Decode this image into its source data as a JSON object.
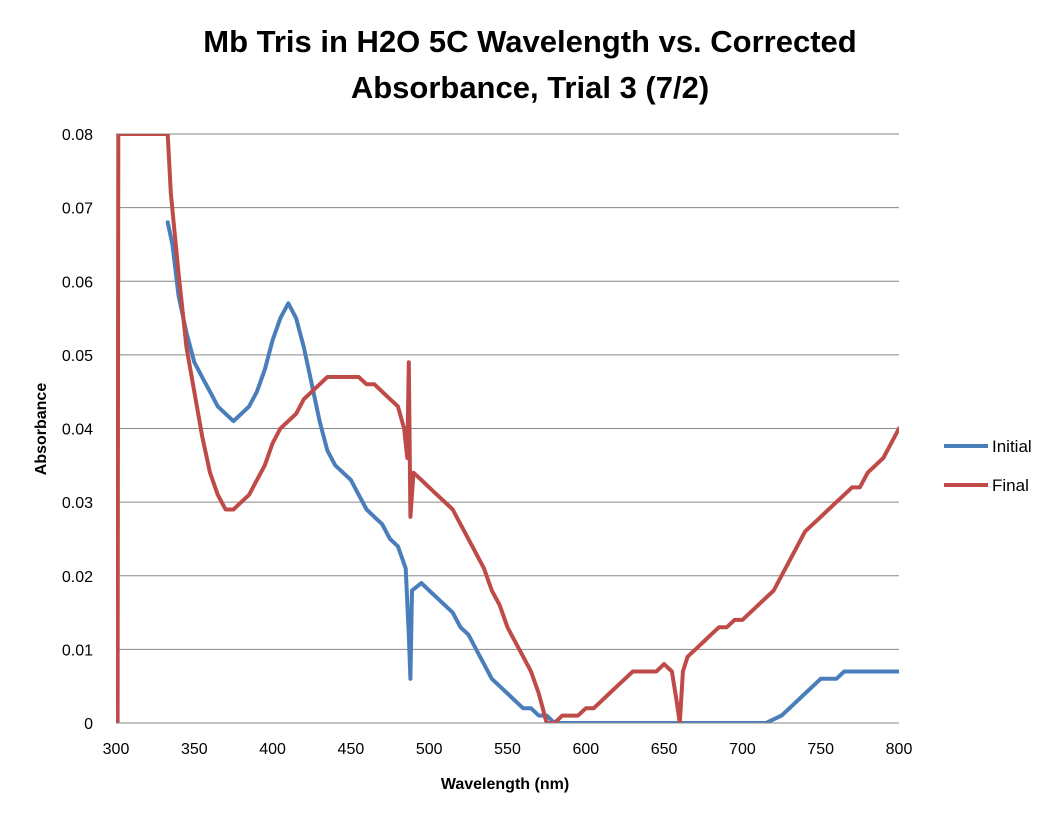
{
  "chart_data": {
    "type": "line",
    "title_lines": [
      "Mb Tris in H2O 5C Wavelength vs. Corrected",
      "Absorbance, Trial 3 (7/2)"
    ],
    "xlabel": "Wavelength (nm)",
    "ylabel": "Absorbance",
    "xlim": [
      300,
      800
    ],
    "ylim": [
      0,
      0.08
    ],
    "x_ticks": [
      "300",
      "350",
      "400",
      "450",
      "500",
      "550",
      "600",
      "650",
      "700",
      "750",
      "800"
    ],
    "y_ticks": [
      "0",
      "0.01",
      "0.02",
      "0.03",
      "0.04",
      "0.05",
      "0.06",
      "0.07",
      "0.08"
    ],
    "grid": "horizontal",
    "legend_position": "right",
    "series": [
      {
        "name": "Initial",
        "color": "#4a7ebb",
        "points": [
          [
            333,
            0.068
          ],
          [
            336,
            0.065
          ],
          [
            340,
            0.058
          ],
          [
            345,
            0.053
          ],
          [
            350,
            0.049
          ],
          [
            355,
            0.047
          ],
          [
            360,
            0.045
          ],
          [
            365,
            0.043
          ],
          [
            370,
            0.042
          ],
          [
            375,
            0.041
          ],
          [
            380,
            0.042
          ],
          [
            385,
            0.043
          ],
          [
            390,
            0.045
          ],
          [
            395,
            0.048
          ],
          [
            400,
            0.052
          ],
          [
            405,
            0.055
          ],
          [
            410,
            0.057
          ],
          [
            415,
            0.055
          ],
          [
            420,
            0.051
          ],
          [
            425,
            0.046
          ],
          [
            430,
            0.041
          ],
          [
            435,
            0.037
          ],
          [
            440,
            0.035
          ],
          [
            445,
            0.034
          ],
          [
            450,
            0.033
          ],
          [
            455,
            0.031
          ],
          [
            460,
            0.029
          ],
          [
            465,
            0.028
          ],
          [
            470,
            0.027
          ],
          [
            475,
            0.025
          ],
          [
            480,
            0.024
          ],
          [
            485,
            0.021
          ],
          [
            487,
            0.012
          ],
          [
            488,
            0.006
          ],
          [
            489,
            0.018
          ],
          [
            495,
            0.019
          ],
          [
            500,
            0.018
          ],
          [
            505,
            0.017
          ],
          [
            510,
            0.016
          ],
          [
            515,
            0.015
          ],
          [
            520,
            0.013
          ],
          [
            525,
            0.012
          ],
          [
            530,
            0.01
          ],
          [
            535,
            0.008
          ],
          [
            540,
            0.006
          ],
          [
            545,
            0.005
          ],
          [
            550,
            0.004
          ],
          [
            555,
            0.003
          ],
          [
            560,
            0.002
          ],
          [
            565,
            0.002
          ],
          [
            570,
            0.001
          ],
          [
            575,
            0.001
          ],
          [
            580,
            0.0
          ],
          [
            590,
            0.0
          ],
          [
            600,
            0.0
          ],
          [
            610,
            0.0
          ],
          [
            620,
            0.0
          ],
          [
            630,
            0.0
          ],
          [
            640,
            0.0
          ],
          [
            650,
            0.0
          ],
          [
            660,
            0.0
          ],
          [
            670,
            0.0
          ],
          [
            680,
            0.0
          ],
          [
            690,
            0.0
          ],
          [
            700,
            0.0
          ],
          [
            710,
            0.0
          ],
          [
            715,
            0.0
          ],
          [
            720,
            0.0005
          ],
          [
            725,
            0.001
          ],
          [
            730,
            0.002
          ],
          [
            735,
            0.003
          ],
          [
            740,
            0.004
          ],
          [
            745,
            0.005
          ],
          [
            750,
            0.006
          ],
          [
            755,
            0.006
          ],
          [
            760,
            0.006
          ],
          [
            765,
            0.007
          ],
          [
            770,
            0.007
          ],
          [
            775,
            0.007
          ],
          [
            780,
            0.007
          ],
          [
            785,
            0.007
          ],
          [
            790,
            0.007
          ],
          [
            795,
            0.007
          ],
          [
            800,
            0.007
          ]
        ]
      },
      {
        "name": "Final",
        "color": "#be4b48",
        "points": [
          [
            301,
            0.0
          ],
          [
            301.5,
            0.08
          ],
          [
            333,
            0.08
          ],
          [
            335,
            0.072
          ],
          [
            340,
            0.061
          ],
          [
            345,
            0.051
          ],
          [
            350,
            0.045
          ],
          [
            355,
            0.039
          ],
          [
            360,
            0.034
          ],
          [
            365,
            0.031
          ],
          [
            370,
            0.029
          ],
          [
            375,
            0.029
          ],
          [
            380,
            0.03
          ],
          [
            385,
            0.031
          ],
          [
            390,
            0.033
          ],
          [
            395,
            0.035
          ],
          [
            400,
            0.038
          ],
          [
            405,
            0.04
          ],
          [
            410,
            0.041
          ],
          [
            415,
            0.042
          ],
          [
            420,
            0.044
          ],
          [
            425,
            0.045
          ],
          [
            430,
            0.046
          ],
          [
            435,
            0.047
          ],
          [
            440,
            0.047
          ],
          [
            445,
            0.047
          ],
          [
            450,
            0.047
          ],
          [
            455,
            0.047
          ],
          [
            460,
            0.046
          ],
          [
            465,
            0.046
          ],
          [
            470,
            0.045
          ],
          [
            475,
            0.044
          ],
          [
            480,
            0.043
          ],
          [
            484,
            0.04
          ],
          [
            486,
            0.036
          ],
          [
            487,
            0.049
          ],
          [
            488,
            0.028
          ],
          [
            490,
            0.034
          ],
          [
            495,
            0.033
          ],
          [
            500,
            0.032
          ],
          [
            505,
            0.031
          ],
          [
            510,
            0.03
          ],
          [
            515,
            0.029
          ],
          [
            520,
            0.027
          ],
          [
            525,
            0.025
          ],
          [
            530,
            0.023
          ],
          [
            535,
            0.021
          ],
          [
            540,
            0.018
          ],
          [
            545,
            0.016
          ],
          [
            550,
            0.013
          ],
          [
            555,
            0.011
          ],
          [
            560,
            0.009
          ],
          [
            565,
            0.007
          ],
          [
            570,
            0.004
          ],
          [
            575,
            0.0
          ],
          [
            580,
            0.0
          ],
          [
            585,
            0.001
          ],
          [
            590,
            0.001
          ],
          [
            595,
            0.001
          ],
          [
            600,
            0.002
          ],
          [
            605,
            0.002
          ],
          [
            610,
            0.003
          ],
          [
            615,
            0.004
          ],
          [
            620,
            0.005
          ],
          [
            625,
            0.006
          ],
          [
            630,
            0.007
          ],
          [
            635,
            0.007
          ],
          [
            640,
            0.007
          ],
          [
            645,
            0.007
          ],
          [
            650,
            0.008
          ],
          [
            655,
            0.007
          ],
          [
            658,
            0.003
          ],
          [
            660,
            0.0
          ],
          [
            662,
            0.007
          ],
          [
            665,
            0.009
          ],
          [
            670,
            0.01
          ],
          [
            675,
            0.011
          ],
          [
            680,
            0.012
          ],
          [
            685,
            0.013
          ],
          [
            690,
            0.013
          ],
          [
            695,
            0.014
          ],
          [
            700,
            0.014
          ],
          [
            705,
            0.015
          ],
          [
            710,
            0.016
          ],
          [
            715,
            0.017
          ],
          [
            720,
            0.018
          ],
          [
            725,
            0.02
          ],
          [
            730,
            0.022
          ],
          [
            735,
            0.024
          ],
          [
            740,
            0.026
          ],
          [
            745,
            0.027
          ],
          [
            750,
            0.028
          ],
          [
            755,
            0.029
          ],
          [
            760,
            0.03
          ],
          [
            765,
            0.031
          ],
          [
            770,
            0.032
          ],
          [
            775,
            0.032
          ],
          [
            780,
            0.034
          ],
          [
            785,
            0.035
          ],
          [
            790,
            0.036
          ],
          [
            795,
            0.038
          ],
          [
            800,
            0.04
          ]
        ]
      }
    ]
  }
}
